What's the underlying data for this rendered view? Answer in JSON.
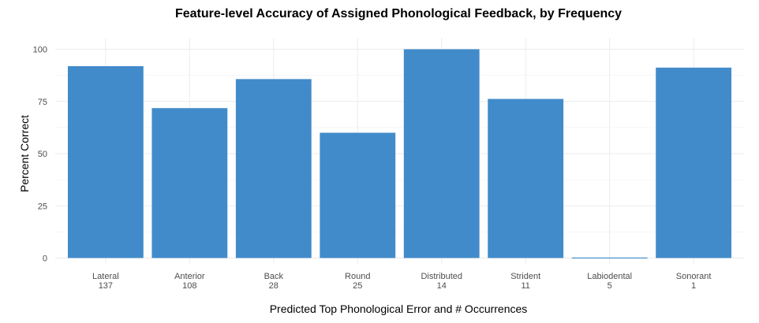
{
  "chart_data": {
    "type": "bar",
    "title": "Feature-level Accuracy of Assigned Phonological Feedback, by Frequency",
    "xlabel": "Predicted Top Phonological Error and # Occurrences",
    "ylabel": "Percent Correct",
    "categories": [
      {
        "name": "Lateral",
        "count": "137"
      },
      {
        "name": "Anterior",
        "count": "108"
      },
      {
        "name": "Back",
        "count": "28"
      },
      {
        "name": "Round",
        "count": "25"
      },
      {
        "name": "Distributed",
        "count": "14"
      },
      {
        "name": "Strident",
        "count": "11"
      },
      {
        "name": "Labiodental",
        "count": "5"
      },
      {
        "name": "Sonorant",
        "count": "1"
      }
    ],
    "values": [
      91.9,
      71.8,
      85.7,
      60.0,
      100.0,
      76.2,
      0.0,
      91.2
    ],
    "yticks": [
      0,
      25,
      50,
      75,
      100
    ],
    "ylim": [
      0,
      105
    ],
    "bar_color": "#428bca",
    "grid": true
  }
}
